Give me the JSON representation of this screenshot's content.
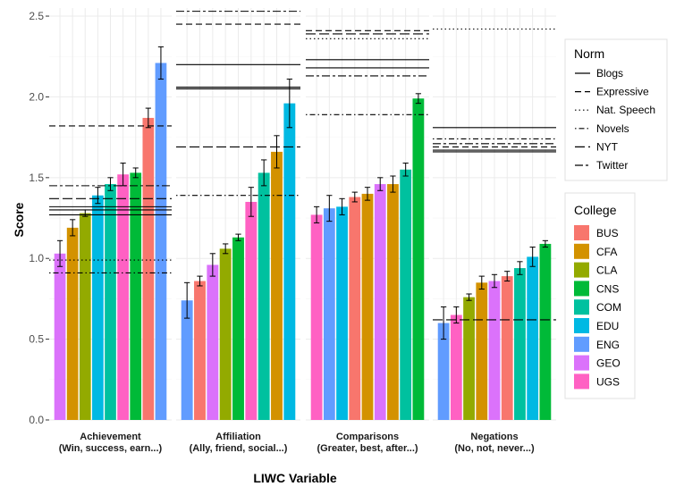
{
  "chart_data": {
    "type": "bar",
    "xlabel": "LIWC Variable",
    "ylabel": "Score",
    "ylim": [
      0,
      2.55
    ],
    "yticks": [
      "0.0",
      "0.5",
      "1.0",
      "1.5",
      "2.0",
      "2.5"
    ],
    "grid": true,
    "college_legend": {
      "title": "College",
      "entries": [
        {
          "name": "BUS",
          "color": "#F8766D"
        },
        {
          "name": "CFA",
          "color": "#D39200"
        },
        {
          "name": "CLA",
          "color": "#93AA00"
        },
        {
          "name": "CNS",
          "color": "#00BA38"
        },
        {
          "name": "COM",
          "color": "#00C19F"
        },
        {
          "name": "EDU",
          "color": "#00B9E3"
        },
        {
          "name": "ENG",
          "color": "#619CFF"
        },
        {
          "name": "GEO",
          "color": "#DB72FB"
        },
        {
          "name": "UGS",
          "color": "#FF61C3"
        }
      ]
    },
    "norm_legend": {
      "title": "Norm",
      "entries": [
        {
          "name": "Blogs",
          "dash": "solid"
        },
        {
          "name": "Expressive",
          "dash": "dashed"
        },
        {
          "name": "Nat. Speech",
          "dash": "dotted"
        },
        {
          "name": "Novels",
          "dash": "dotdash"
        },
        {
          "name": "NYT",
          "dash": "longdash"
        },
        {
          "name": "Twitter",
          "dash": "twodash"
        }
      ]
    },
    "facets": [
      {
        "label1": "Achievement",
        "label2": "(Win, success, earn...)",
        "bars": [
          {
            "college": "GEO",
            "value": 1.03,
            "err": 0.08
          },
          {
            "college": "CFA",
            "value": 1.19,
            "err": 0.05
          },
          {
            "college": "CLA",
            "value": 1.28,
            "err": 0.02
          },
          {
            "college": "EDU",
            "value": 1.39,
            "err": 0.05
          },
          {
            "college": "COM",
            "value": 1.46,
            "err": 0.04
          },
          {
            "college": "UGS",
            "value": 1.52,
            "err": 0.07
          },
          {
            "college": "CNS",
            "value": 1.53,
            "err": 0.03
          },
          {
            "college": "BUS",
            "value": 1.87,
            "err": 0.06
          },
          {
            "college": "ENG",
            "value": 2.21,
            "err": 0.1
          }
        ],
        "norms": [
          {
            "type": "Blogs",
            "values": [
              1.27,
              1.3,
              1.32
            ]
          },
          {
            "type": "Expressive",
            "values": [
              1.82
            ]
          },
          {
            "type": "Nat. Speech",
            "values": [
              0.99
            ]
          },
          {
            "type": "Novels",
            "values": [
              0.91
            ]
          },
          {
            "type": "NYT",
            "values": [
              1.37
            ]
          },
          {
            "type": "Twitter",
            "values": [
              1.45
            ]
          }
        ]
      },
      {
        "label1": "Affiliation",
        "label2": "(Ally, friend, social...)",
        "bars": [
          {
            "college": "ENG",
            "value": 0.74,
            "err": 0.11
          },
          {
            "college": "BUS",
            "value": 0.86,
            "err": 0.03
          },
          {
            "college": "GEO",
            "value": 0.96,
            "err": 0.07
          },
          {
            "college": "CLA",
            "value": 1.06,
            "err": 0.03
          },
          {
            "college": "CNS",
            "value": 1.13,
            "err": 0.02
          },
          {
            "college": "UGS",
            "value": 1.35,
            "err": 0.09
          },
          {
            "college": "COM",
            "value": 1.53,
            "err": 0.08
          },
          {
            "college": "CFA",
            "value": 1.66,
            "err": 0.1
          },
          {
            "college": "EDU",
            "value": 1.96,
            "err": 0.15
          }
        ],
        "norms": [
          {
            "type": "Blogs",
            "values": [
              2.2,
              2.05,
              2.06
            ]
          },
          {
            "type": "Expressive",
            "values": [
              2.45
            ]
          },
          {
            "type": "Novels",
            "values": [
              1.39
            ]
          },
          {
            "type": "NYT",
            "values": [
              1.69
            ]
          },
          {
            "type": "Twitter",
            "values": [
              2.53
            ]
          }
        ]
      },
      {
        "label1": "Comparisons",
        "label2": "(Greater, best, after...)",
        "bars": [
          {
            "college": "UGS",
            "value": 1.27,
            "err": 0.05
          },
          {
            "college": "ENG",
            "value": 1.31,
            "err": 0.08
          },
          {
            "college": "EDU",
            "value": 1.32,
            "err": 0.05
          },
          {
            "college": "BUS",
            "value": 1.38,
            "err": 0.03
          },
          {
            "college": "CFA",
            "value": 1.4,
            "err": 0.04
          },
          {
            "college": "GEO",
            "value": 1.46,
            "err": 0.04
          },
          {
            "college": "CFA",
            "value": 1.46,
            "err": 0.05
          },
          {
            "college": "COM",
            "value": 1.55,
            "err": 0.04
          },
          {
            "college": "CNS",
            "value": 1.99,
            "err": 0.03
          }
        ],
        "norms": [
          {
            "type": "Blogs",
            "values": [
              2.23,
              2.18
            ]
          },
          {
            "type": "Expressive",
            "values": [
              2.41
            ]
          },
          {
            "type": "Nat. Speech",
            "values": [
              2.36
            ]
          },
          {
            "type": "Novels",
            "values": [
              1.89
            ]
          },
          {
            "type": "NYT",
            "values": [
              2.39
            ]
          },
          {
            "type": "Twitter",
            "values": [
              2.13
            ]
          }
        ]
      },
      {
        "label1": "Negations",
        "label2": "(No, not, never...)",
        "bars": [
          {
            "college": "ENG",
            "value": 0.6,
            "err": 0.1
          },
          {
            "college": "UGS",
            "value": 0.65,
            "err": 0.05
          },
          {
            "college": "CLA",
            "value": 0.76,
            "err": 0.02
          },
          {
            "college": "CFA",
            "value": 0.85,
            "err": 0.04
          },
          {
            "college": "GEO",
            "value": 0.86,
            "err": 0.04
          },
          {
            "college": "BUS",
            "value": 0.89,
            "err": 0.03
          },
          {
            "college": "COM",
            "value": 0.94,
            "err": 0.04
          },
          {
            "college": "EDU",
            "value": 1.01,
            "err": 0.06
          },
          {
            "college": "CNS",
            "value": 1.09,
            "err": 0.02
          }
        ],
        "norms": [
          {
            "type": "Blogs",
            "values": [
              1.81,
              1.66,
              1.67
            ]
          },
          {
            "type": "Expressive",
            "values": [
              1.69
            ]
          },
          {
            "type": "Nat. Speech",
            "values": [
              2.42
            ]
          },
          {
            "type": "Novels",
            "values": [
              1.74
            ]
          },
          {
            "type": "NYT",
            "values": [
              0.62
            ]
          },
          {
            "type": "Twitter",
            "values": [
              1.71
            ]
          }
        ]
      }
    ]
  }
}
